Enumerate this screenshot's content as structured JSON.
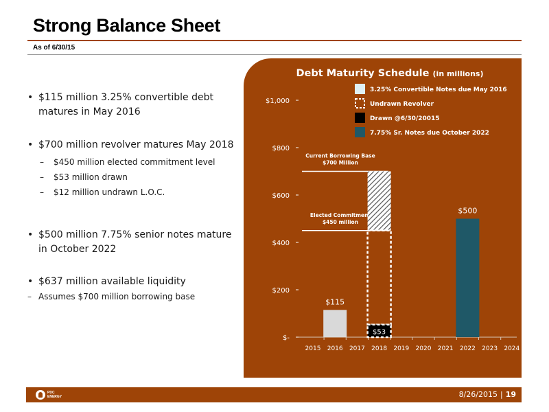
{
  "slide": {
    "title": "Strong Balance Sheet",
    "subtitle": "As of 6/30/15"
  },
  "bullets": [
    {
      "text": "$115 million 3.25% convertible debt matures in May 2016"
    },
    {
      "text": "$700 million revolver matures May 2018",
      "subitems": [
        "$450 million elected commitment level",
        "$53 million drawn",
        "$12 million undrawn L.O.C."
      ]
    },
    {
      "text": "$500 million 7.75% senior notes mature in October 2022"
    },
    {
      "text": "$637 million available liquidity",
      "subitems": [
        "Assumes $700 million borrowing base"
      ]
    }
  ],
  "footer": {
    "logo_text": "PDC ENERGY",
    "date": "8/26/2015",
    "separator": "|",
    "page": "19"
  },
  "colors": {
    "brand": "#9e4407",
    "convertible": "#d9d9d9",
    "drawn": "#000000",
    "senior_notes": "#1f5867",
    "text_light": "#ffffff"
  },
  "chart_data": {
    "type": "bar",
    "title": "Debt Maturity Schedule",
    "title_suffix": "(in millions)",
    "categories": [
      "2015",
      "2016",
      "2017",
      "2018",
      "2019",
      "2020",
      "2021",
      "2022",
      "2023",
      "2024"
    ],
    "y_ticks": [
      {
        "value": 1000,
        "label": "$1,000"
      },
      {
        "value": 800,
        "label": "$800"
      },
      {
        "value": 600,
        "label": "$600"
      },
      {
        "value": 400,
        "label": "$400"
      },
      {
        "value": 200,
        "label": "$200"
      },
      {
        "value": 0,
        "label": "$-"
      }
    ],
    "ylim": [
      0,
      1000
    ],
    "series": [
      {
        "name": "3.25% Convertible Notes due May 2016",
        "style": "solid-light",
        "data": [
          {
            "x": "2016",
            "value": 115,
            "label": "$115"
          }
        ]
      },
      {
        "name": "Undrawn Revolver",
        "style": "dashed-outline",
        "data": [
          {
            "x": "2018",
            "from": 53,
            "to": 450,
            "label": ""
          }
        ]
      },
      {
        "name": "Drawn @6/30/20015",
        "style": "solid-black",
        "data": [
          {
            "x": "2018",
            "value": 53,
            "label": "$53"
          }
        ]
      },
      {
        "name": "7.75% Sr. Notes due October 2022",
        "style": "solid-teal",
        "data": [
          {
            "x": "2022",
            "value": 500,
            "label": "$500"
          }
        ]
      }
    ],
    "hatched_segment": {
      "x": "2018",
      "from": 450,
      "to": 700
    },
    "reference_lines": [
      {
        "value": 700,
        "label_lines": [
          "Current Borrowing Base",
          "$700 Million"
        ]
      },
      {
        "value": 450,
        "label_lines": [
          "Elected Commitment",
          "$450 million"
        ]
      }
    ],
    "legend_position": "top-right",
    "grid": false
  }
}
